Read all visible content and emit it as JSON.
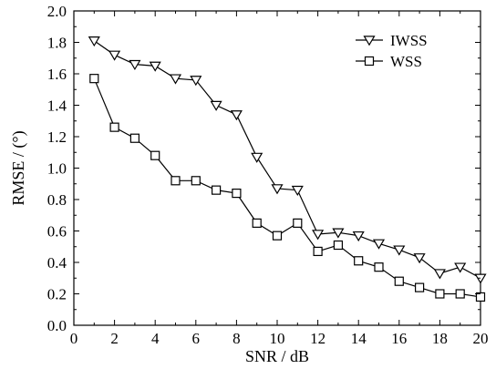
{
  "chart_data": {
    "type": "line",
    "xlabel": "SNR / dB",
    "ylabel": "RMSE / (°)",
    "xlim": [
      0,
      20
    ],
    "ylim": [
      0,
      2.0
    ],
    "xticks": [
      "0",
      "2",
      "4",
      "6",
      "8",
      "10",
      "12",
      "14",
      "16",
      "18",
      "20"
    ],
    "yticks": [
      "0.0",
      "0.2",
      "0.4",
      "0.6",
      "0.8",
      "1.0",
      "1.2",
      "1.4",
      "1.6",
      "1.8",
      "2.0"
    ],
    "grid": false,
    "legend_position": "top-right",
    "x": [
      1,
      2,
      3,
      4,
      5,
      6,
      7,
      8,
      9,
      10,
      11,
      12,
      13,
      14,
      15,
      16,
      17,
      18,
      19,
      20
    ],
    "series": [
      {
        "name": "IWSS",
        "marker": "triangle-down",
        "values": [
          1.81,
          1.72,
          1.66,
          1.65,
          1.57,
          1.56,
          1.4,
          1.34,
          1.07,
          0.87,
          0.86,
          0.58,
          0.59,
          0.57,
          0.52,
          0.48,
          0.43,
          0.33,
          0.37,
          0.3
        ]
      },
      {
        "name": "WSS",
        "marker": "square",
        "values": [
          1.57,
          1.26,
          1.19,
          1.08,
          0.92,
          0.92,
          0.86,
          0.84,
          0.65,
          0.57,
          0.65,
          0.47,
          0.51,
          0.41,
          0.37,
          0.28,
          0.24,
          0.2,
          0.2,
          0.18
        ]
      }
    ]
  }
}
